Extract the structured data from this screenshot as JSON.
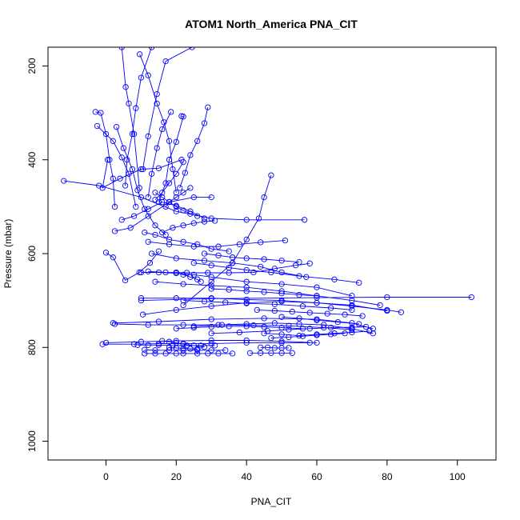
{
  "chart_data": {
    "type": "line",
    "title": "ATOM1 North_America PNA_CIT",
    "xlabel": "PNA_CIT",
    "ylabel": "Pressure (mbar)",
    "xlim": [
      -16.5,
      111
    ],
    "ylim": [
      1040,
      160
    ],
    "y_reversed": true,
    "x_ticks": [
      0,
      20,
      40,
      60,
      80,
      100
    ],
    "y_ticks": [
      200,
      400,
      600,
      800,
      1000
    ],
    "grid": false,
    "series_color": "#0000ff",
    "point_style": "open-circle",
    "series": [
      {
        "x": [
          4.5,
          5.6,
          6.5,
          8.0,
          9.5
        ],
        "y": [
          160,
          245,
          280,
          345,
          460
        ]
      },
      {
        "x": [
          13,
          10,
          8.5,
          7.5,
          6,
          5.5
        ],
        "y": [
          160,
          225,
          290,
          345,
          400,
          455
        ]
      },
      {
        "x": [
          9.6,
          12,
          14.5,
          16.5,
          18,
          19,
          20
        ],
        "y": [
          175,
          220,
          280,
          320,
          360,
          420,
          470
        ]
      },
      {
        "x": [
          24.5,
          17,
          14.5,
          12,
          10.5
        ],
        "y": [
          160,
          190,
          260,
          350,
          420
        ]
      },
      {
        "x": [
          -3,
          -1.5,
          0,
          1,
          2,
          2.5
        ],
        "y": [
          298,
          300,
          345,
          400,
          440,
          500
        ]
      },
      {
        "x": [
          -2.5,
          2,
          4.5,
          6.5,
          8.5
        ],
        "y": [
          328,
          360,
          395,
          430,
          500
        ]
      },
      {
        "x": [
          3,
          5,
          7.5,
          9,
          11,
          14,
          17
        ],
        "y": [
          330,
          375,
          420,
          465,
          505,
          540,
          560
        ]
      },
      {
        "x": [
          18.5,
          16,
          14.5,
          13,
          12
        ],
        "y": [
          298,
          335,
          375,
          430,
          480
        ]
      },
      {
        "x": [
          21.5,
          22,
          20,
          18,
          17,
          15
        ],
        "y": [
          307,
          308,
          362,
          400,
          450,
          490
        ]
      },
      {
        "x": [
          29,
          28,
          26,
          24,
          22.5,
          21
        ],
        "y": [
          288,
          322,
          360,
          390,
          428,
          460
        ]
      },
      {
        "x": [
          0.5,
          -1,
          4,
          10,
          15,
          21.5
        ],
        "y": [
          400,
          460,
          440,
          420,
          418,
          400
        ]
      },
      {
        "x": [
          -12,
          -2,
          10,
          20,
          30,
          40,
          56.5
        ],
        "y": [
          445,
          455,
          480,
          510,
          525,
          528,
          528
        ]
      },
      {
        "x": [
          4.5,
          8,
          12,
          16,
          20,
          24,
          28
        ],
        "y": [
          528,
          520,
          505,
          490,
          498,
          510,
          525
        ]
      },
      {
        "x": [
          2.5,
          7,
          12,
          18,
          25,
          30
        ],
        "y": [
          552,
          545,
          520,
          490,
          480,
          480
        ]
      },
      {
        "x": [
          47,
          45,
          43.5,
          40,
          36,
          30,
          22
        ],
        "y": [
          433,
          480,
          525,
          570,
          620,
          660,
          710
        ]
      },
      {
        "x": [
          0,
          2,
          5.5,
          9.5,
          12.5,
          15
        ],
        "y": [
          598,
          608,
          657,
          640,
          620,
          595
        ]
      },
      {
        "x": [
          11,
          14,
          18,
          22,
          26,
          30,
          35
        ],
        "y": [
          555,
          560,
          570,
          575,
          580,
          590,
          595
        ]
      },
      {
        "x": [
          12,
          18,
          25,
          32,
          38,
          44,
          51
        ],
        "y": [
          575,
          580,
          585,
          585,
          580,
          576,
          572
        ]
      },
      {
        "x": [
          13,
          20,
          28,
          36,
          44,
          50,
          57
        ],
        "y": [
          600,
          610,
          615,
          620,
          628,
          640,
          650
        ]
      },
      {
        "x": [
          12,
          17,
          23,
          29,
          35,
          42,
          48,
          54,
          58
        ],
        "y": [
          638,
          640,
          641,
          641,
          641,
          640,
          632,
          625,
          621
        ]
      },
      {
        "x": [
          10,
          15,
          20,
          25,
          30,
          40,
          50,
          60,
          70
        ],
        "y": [
          640,
          640,
          642,
          645,
          650,
          660,
          665,
          672,
          690
        ]
      },
      {
        "x": [
          14,
          22,
          30,
          40,
          50,
          60,
          70,
          78
        ],
        "y": [
          660,
          665,
          668,
          672,
          680,
          690,
          700,
          710
        ]
      },
      {
        "x": [
          10,
          20,
          30,
          40,
          50,
          60,
          70,
          80,
          84
        ],
        "y": [
          695,
          695,
          695,
          698,
          700,
          705,
          712,
          720,
          725
        ]
      },
      {
        "x": [
          10,
          30,
          60,
          80,
          104
        ],
        "y": [
          700,
          696,
          694,
          693,
          693
        ]
      },
      {
        "x": [
          10.5,
          20,
          30,
          40,
          50,
          60,
          70,
          80
        ],
        "y": [
          730,
          720,
          712,
          705,
          702,
          705,
          710,
          722
        ]
      },
      {
        "x": [
          2,
          15,
          30,
          45,
          60,
          70,
          76
        ],
        "y": [
          748,
          745,
          740,
          738,
          740,
          748,
          760
        ]
      },
      {
        "x": [
          2.5,
          12,
          22,
          32,
          42,
          52,
          62,
          70
        ],
        "y": [
          750,
          752,
          752,
          752,
          753,
          754,
          758,
          762
        ]
      },
      {
        "x": [
          25,
          33,
          40,
          48,
          55,
          62,
          70,
          76
        ],
        "y": [
          755,
          752,
          750,
          748,
          750,
          752,
          760,
          770
        ]
      },
      {
        "x": [
          30,
          38,
          46,
          52,
          58,
          64,
          70,
          74
        ],
        "y": [
          770,
          768,
          765,
          762,
          760,
          758,
          757,
          756
        ]
      },
      {
        "x": [
          45,
          50,
          55,
          60,
          65,
          70,
          75
        ],
        "y": [
          770,
          772,
          775,
          772,
          770,
          768,
          765
        ]
      },
      {
        "x": [
          47,
          52,
          56,
          60,
          64,
          68
        ],
        "y": [
          780,
          778,
          776,
          774,
          772,
          770
        ]
      },
      {
        "x": [
          0,
          10,
          20,
          30,
          40,
          50,
          60
        ],
        "y": [
          790,
          788,
          786,
          785,
          785,
          787,
          790
        ]
      },
      {
        "x": [
          -1,
          8,
          15,
          22,
          30,
          40,
          50,
          58
        ],
        "y": [
          793,
          793,
          792,
          792,
          792,
          790,
          790,
          790
        ]
      },
      {
        "x": [
          9,
          12,
          15,
          19,
          23,
          27,
          31
        ],
        "y": [
          795,
          795,
          795,
          796,
          796,
          796,
          796
        ]
      },
      {
        "x": [
          11,
          14,
          18,
          22,
          26,
          30,
          34
        ],
        "y": [
          805,
          806,
          806,
          806,
          806,
          806,
          806
        ]
      },
      {
        "x": [
          11,
          14,
          17,
          20,
          22,
          26,
          29,
          32,
          36
        ],
        "y": [
          813,
          813,
          813,
          813,
          813,
          813,
          813,
          813,
          813
        ]
      },
      {
        "x": [
          41,
          44,
          47,
          50,
          53
        ],
        "y": [
          812,
          812,
          812,
          812,
          812
        ]
      },
      {
        "x": [
          18,
          20,
          22,
          24,
          26
        ],
        "y": [
          800,
          801,
          802,
          803,
          804
        ]
      },
      {
        "x": [
          44,
          46,
          48,
          50,
          52
        ],
        "y": [
          800,
          800,
          801,
          801,
          801
        ]
      },
      {
        "x": [
          16,
          18,
          20,
          22,
          25,
          28
        ],
        "y": [
          786,
          788,
          790,
          793,
          796,
          799
        ]
      },
      {
        "x": [
          20,
          25,
          30,
          35,
          40,
          45,
          50,
          56
        ],
        "y": [
          760,
          758,
          756,
          755,
          755,
          756,
          758,
          760
        ]
      },
      {
        "x": [
          22,
          28,
          34,
          40,
          48,
          56,
          64,
          70
        ],
        "y": [
          700,
          702,
          704,
          706,
          708,
          712,
          716,
          720
        ]
      },
      {
        "x": [
          30,
          35,
          40,
          45,
          50,
          55,
          60
        ],
        "y": [
          675,
          677,
          680,
          682,
          685,
          688,
          690
        ]
      },
      {
        "x": [
          25,
          30,
          35,
          40,
          47,
          55,
          65,
          72
        ],
        "y": [
          620,
          625,
          630,
          635,
          640,
          648,
          655,
          662
        ]
      },
      {
        "x": [
          28,
          32,
          36,
          40,
          45,
          50,
          55
        ],
        "y": [
          600,
          604,
          608,
          610,
          612,
          615,
          618
        ]
      },
      {
        "x": [
          16,
          19,
          22,
          25,
          28,
          31
        ],
        "y": [
          555,
          545,
          540,
          535,
          532,
          530
        ]
      },
      {
        "x": [
          14,
          16,
          18,
          20,
          22,
          24,
          26
        ],
        "y": [
          470,
          480,
          490,
          500,
          508,
          515,
          520
        ]
      },
      {
        "x": [
          22,
          20,
          18,
          16,
          14
        ],
        "y": [
          405,
          430,
          450,
          470,
          485
        ]
      },
      {
        "x": [
          24,
          22,
          20,
          18,
          17
        ],
        "y": [
          460,
          470,
          480,
          490,
          500
        ]
      },
      {
        "x": [
          20,
          22,
          24,
          26,
          27
        ],
        "y": [
          640,
          645,
          650,
          655,
          660
        ]
      },
      {
        "x": [
          50,
          55,
          60,
          66,
          72
        ],
        "y": [
          735,
          738,
          742,
          746,
          750
        ]
      },
      {
        "x": [
          43,
          48,
          53,
          58,
          63,
          68,
          73
        ],
        "y": [
          720,
          722,
          724,
          726,
          728,
          730,
          733
        ]
      }
    ]
  }
}
